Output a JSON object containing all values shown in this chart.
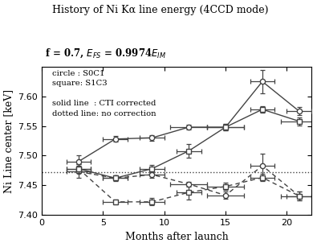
{
  "title": "History of Ni Kα line energy (4CCD mode)",
  "xlabel": "Months after launch",
  "ylabel": "Ni Line center [keV]",
  "xlim": [
    0,
    22
  ],
  "ylim": [
    7.4,
    7.65
  ],
  "yticks": [
    7.4,
    7.45,
    7.5,
    7.55,
    7.6
  ],
  "xticks": [
    0,
    5,
    10,
    15,
    20
  ],
  "dotted_line_y": 7.472,
  "S0C1_solid_x": [
    3,
    6,
    9,
    12,
    15,
    18,
    21
  ],
  "S0C1_solid_y": [
    7.49,
    7.528,
    7.53,
    7.548,
    7.548,
    7.625,
    7.575
  ],
  "S0C1_solid_xerr": [
    1.0,
    1.0,
    1.0,
    1.5,
    1.5,
    1.0,
    1.0
  ],
  "S0C1_solid_yerr": [
    0.01,
    0.005,
    0.005,
    0.004,
    0.006,
    0.02,
    0.007
  ],
  "S1C3_solid_x": [
    3,
    6,
    9,
    12,
    15,
    18,
    21
  ],
  "S1C3_solid_y": [
    7.478,
    7.462,
    7.478,
    7.508,
    7.548,
    7.578,
    7.558
  ],
  "S1C3_solid_xerr": [
    1.0,
    1.0,
    1.0,
    1.0,
    1.5,
    1.0,
    1.5
  ],
  "S1C3_solid_yerr": [
    0.007,
    0.004,
    0.006,
    0.012,
    0.006,
    0.006,
    0.007
  ],
  "S0C1_dot_x": [
    3,
    6,
    9,
    12,
    15,
    18,
    21
  ],
  "S0C1_dot_y": [
    7.473,
    7.462,
    7.468,
    7.452,
    7.433,
    7.483,
    7.432
  ],
  "S0C1_dot_xerr": [
    1.0,
    1.0,
    1.0,
    1.5,
    1.5,
    1.0,
    1.0
  ],
  "S0C1_dot_yerr": [
    0.01,
    0.005,
    0.005,
    0.004,
    0.006,
    0.02,
    0.007
  ],
  "S1C3_dot_x": [
    3,
    6,
    9,
    12,
    15,
    18,
    21
  ],
  "S1C3_dot_y": [
    7.478,
    7.422,
    7.422,
    7.438,
    7.448,
    7.463,
    7.432
  ],
  "S1C3_dot_xerr": [
    1.0,
    1.0,
    1.0,
    1.0,
    1.5,
    1.0,
    1.5
  ],
  "S1C3_dot_yerr": [
    0.007,
    0.004,
    0.006,
    0.012,
    0.006,
    0.006,
    0.007
  ]
}
